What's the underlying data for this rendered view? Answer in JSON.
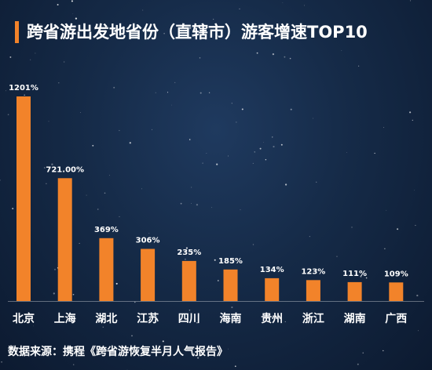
{
  "title": "跨省游出发地省份（直辖市）游客增速TOP10",
  "source": "数据来源：携程《跨省游恢复半月人气报告》",
  "colors": {
    "bar": "#f2832a",
    "text": "#ffffff",
    "accent": "#f2832a"
  },
  "chart_data": {
    "type": "bar",
    "categories": [
      "北京",
      "上海",
      "湖北",
      "江苏",
      "四川",
      "海南",
      "贵州",
      "浙江",
      "湖南",
      "广西"
    ],
    "values": [
      1201,
      721,
      369,
      306,
      235,
      185,
      134,
      123,
      111,
      109
    ],
    "data_labels": [
      "1201%",
      "721.00%",
      "369%",
      "306%",
      "235%",
      "185%",
      "134%",
      "123%",
      "111%",
      "109%"
    ],
    "unit": "%",
    "grid": false,
    "legend": "none"
  }
}
